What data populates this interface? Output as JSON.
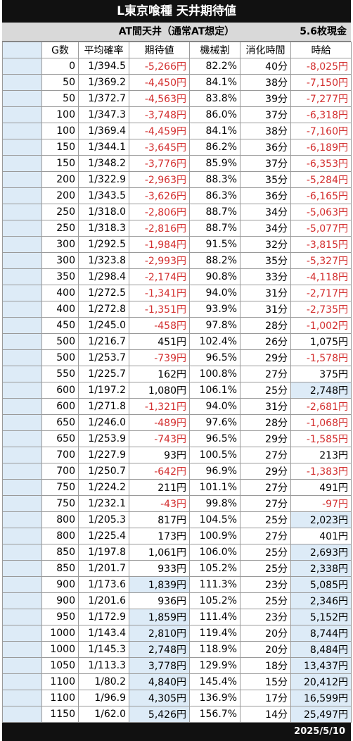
{
  "header": {
    "title": "L東京喰種 天井期待値",
    "subtitle": "AT間天井（通常AT想定）",
    "currency": "5.6枚現金"
  },
  "columns": [
    "G数",
    "平均確率",
    "期待値",
    "機械割",
    "消化時間",
    "時給"
  ],
  "rows": [
    {
      "g": "0",
      "prob": "1/394.5",
      "ev": "-5,266円",
      "rate": "82.2%",
      "time": "40分",
      "hourly": "-8,025円"
    },
    {
      "g": "50",
      "prob": "1/369.2",
      "ev": "-4,450円",
      "rate": "84.1%",
      "time": "38分",
      "hourly": "-7,150円"
    },
    {
      "g": "50",
      "prob": "1/372.7",
      "ev": "-4,563円",
      "rate": "83.8%",
      "time": "39分",
      "hourly": "-7,277円"
    },
    {
      "g": "100",
      "prob": "1/347.3",
      "ev": "-3,748円",
      "rate": "86.0%",
      "time": "37分",
      "hourly": "-6,318円"
    },
    {
      "g": "100",
      "prob": "1/369.4",
      "ev": "-4,459円",
      "rate": "84.1%",
      "time": "38分",
      "hourly": "-7,160円"
    },
    {
      "g": "150",
      "prob": "1/344.1",
      "ev": "-3,645円",
      "rate": "86.2%",
      "time": "36分",
      "hourly": "-6,189円"
    },
    {
      "g": "150",
      "prob": "1/348.2",
      "ev": "-3,776円",
      "rate": "85.9%",
      "time": "37分",
      "hourly": "-6,353円"
    },
    {
      "g": "200",
      "prob": "1/322.9",
      "ev": "-2,963円",
      "rate": "88.3%",
      "time": "35分",
      "hourly": "-5,284円"
    },
    {
      "g": "200",
      "prob": "1/343.5",
      "ev": "-3,626円",
      "rate": "86.3%",
      "time": "36分",
      "hourly": "-6,165円"
    },
    {
      "g": "250",
      "prob": "1/318.0",
      "ev": "-2,806円",
      "rate": "88.7%",
      "time": "34分",
      "hourly": "-5,063円"
    },
    {
      "g": "250",
      "prob": "1/318.3",
      "ev": "-2,816円",
      "rate": "88.7%",
      "time": "34分",
      "hourly": "-5,077円"
    },
    {
      "g": "300",
      "prob": "1/292.5",
      "ev": "-1,984円",
      "rate": "91.5%",
      "time": "32分",
      "hourly": "-3,815円"
    },
    {
      "g": "300",
      "prob": "1/323.8",
      "ev": "-2,993円",
      "rate": "88.2%",
      "time": "35分",
      "hourly": "-5,327円"
    },
    {
      "g": "350",
      "prob": "1/298.4",
      "ev": "-2,174円",
      "rate": "90.8%",
      "time": "33分",
      "hourly": "-4,118円"
    },
    {
      "g": "400",
      "prob": "1/272.5",
      "ev": "-1,341円",
      "rate": "94.0%",
      "time": "31分",
      "hourly": "-2,717円"
    },
    {
      "g": "400",
      "prob": "1/272.8",
      "ev": "-1,351円",
      "rate": "93.9%",
      "time": "31分",
      "hourly": "-2,735円"
    },
    {
      "g": "450",
      "prob": "1/245.0",
      "ev": "-458円",
      "rate": "97.8%",
      "time": "28分",
      "hourly": "-1,002円"
    },
    {
      "g": "500",
      "prob": "1/216.7",
      "ev": "451円",
      "rate": "102.4%",
      "time": "26分",
      "hourly": "1,075円"
    },
    {
      "g": "500",
      "prob": "1/253.7",
      "ev": "-739円",
      "rate": "96.5%",
      "time": "29分",
      "hourly": "-1,578円"
    },
    {
      "g": "550",
      "prob": "1/225.7",
      "ev": "162円",
      "rate": "100.8%",
      "time": "27分",
      "hourly": "375円"
    },
    {
      "g": "600",
      "prob": "1/197.2",
      "ev": "1,080円",
      "rate": "106.1%",
      "time": "25分",
      "hourly": "2,748円",
      "hl_hourly": true
    },
    {
      "g": "600",
      "prob": "1/271.8",
      "ev": "-1,321円",
      "rate": "94.0%",
      "time": "31分",
      "hourly": "-2,681円"
    },
    {
      "g": "650",
      "prob": "1/246.0",
      "ev": "-489円",
      "rate": "97.6%",
      "time": "28分",
      "hourly": "-1,068円"
    },
    {
      "g": "650",
      "prob": "1/253.9",
      "ev": "-743円",
      "rate": "96.5%",
      "time": "29分",
      "hourly": "-1,585円"
    },
    {
      "g": "700",
      "prob": "1/227.9",
      "ev": "93円",
      "rate": "100.5%",
      "time": "27分",
      "hourly": "213円"
    },
    {
      "g": "700",
      "prob": "1/250.7",
      "ev": "-642円",
      "rate": "96.9%",
      "time": "29分",
      "hourly": "-1,383円"
    },
    {
      "g": "750",
      "prob": "1/224.2",
      "ev": "211円",
      "rate": "101.1%",
      "time": "27分",
      "hourly": "491円"
    },
    {
      "g": "750",
      "prob": "1/232.1",
      "ev": "-43円",
      "rate": "99.8%",
      "time": "27分",
      "hourly": "-97円"
    },
    {
      "g": "800",
      "prob": "1/205.3",
      "ev": "817円",
      "rate": "104.5%",
      "time": "25分",
      "hourly": "2,023円",
      "hl_hourly": true
    },
    {
      "g": "800",
      "prob": "1/225.4",
      "ev": "173円",
      "rate": "100.9%",
      "time": "27分",
      "hourly": "401円"
    },
    {
      "g": "850",
      "prob": "1/197.8",
      "ev": "1,061円",
      "rate": "106.0%",
      "time": "25分",
      "hourly": "2,693円",
      "hl_hourly": true
    },
    {
      "g": "850",
      "prob": "1/201.7",
      "ev": "933円",
      "rate": "105.2%",
      "time": "25分",
      "hourly": "2,338円",
      "hl_hourly": true
    },
    {
      "g": "900",
      "prob": "1/173.6",
      "ev": "1,839円",
      "rate": "111.3%",
      "time": "23分",
      "hourly": "5,085円",
      "hl_ev": true,
      "hl_hourly": true
    },
    {
      "g": "900",
      "prob": "1/201.6",
      "ev": "936円",
      "rate": "105.2%",
      "time": "25分",
      "hourly": "2,346円",
      "hl_hourly": true
    },
    {
      "g": "950",
      "prob": "1/172.9",
      "ev": "1,859円",
      "rate": "111.4%",
      "time": "23分",
      "hourly": "5,152円",
      "hl_ev": true,
      "hl_hourly": true
    },
    {
      "g": "1000",
      "prob": "1/143.4",
      "ev": "2,810円",
      "rate": "119.4%",
      "time": "20分",
      "hourly": "8,744円",
      "hl_ev": true,
      "hl_hourly": true
    },
    {
      "g": "1000",
      "prob": "1/145.3",
      "ev": "2,748円",
      "rate": "118.9%",
      "time": "20分",
      "hourly": "8,484円",
      "hl_ev": true,
      "hl_hourly": true
    },
    {
      "g": "1050",
      "prob": "1/113.3",
      "ev": "3,778円",
      "rate": "129.9%",
      "time": "18分",
      "hourly": "13,437円",
      "hl_ev": true,
      "hl_hourly": true
    },
    {
      "g": "1100",
      "prob": "1/80.2",
      "ev": "4,840円",
      "rate": "145.4%",
      "time": "15分",
      "hourly": "20,412円",
      "hl_ev": true,
      "hl_hourly": true
    },
    {
      "g": "1100",
      "prob": "1/96.9",
      "ev": "4,305円",
      "rate": "136.9%",
      "time": "17分",
      "hourly": "16,599円",
      "hl_ev": true,
      "hl_hourly": true
    },
    {
      "g": "1150",
      "prob": "1/62.0",
      "ev": "5,426円",
      "rate": "156.7%",
      "time": "14分",
      "hourly": "25,497円",
      "hl_ev": true,
      "hl_hourly": true
    }
  ],
  "footer": {
    "date": "2025/5/10"
  }
}
